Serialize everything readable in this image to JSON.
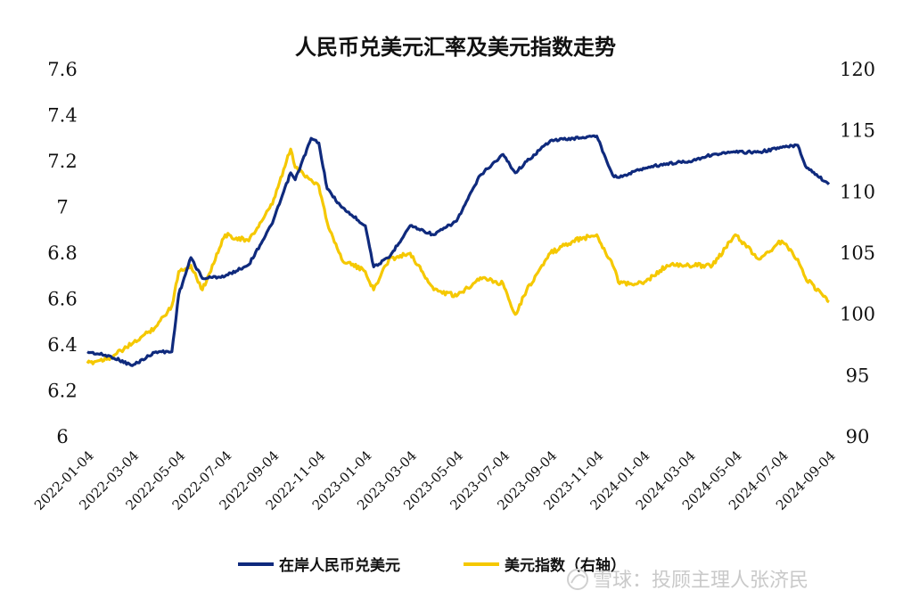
{
  "chart_data": {
    "type": "line",
    "title": "人民币兑美元汇率及美元指数走势",
    "xlabel": "",
    "ylabel": "",
    "x_ticks": [
      "2022-01-04",
      "2022-03-04",
      "2022-05-04",
      "2022-07-04",
      "2022-09-04",
      "2022-11-04",
      "2023-01-04",
      "2023-03-04",
      "2023-05-04",
      "2023-07-04",
      "2023-09-04",
      "2023-11-04",
      "2024-01-04",
      "2024-03-04",
      "2024-05-04",
      "2024-07-04",
      "2024-09-04"
    ],
    "y_left": {
      "min": 6,
      "max": 7.6,
      "ticks": [
        "7.6",
        "7.4",
        "7.2",
        "7",
        "6.8",
        "6.6",
        "6.4",
        "6.2",
        "6"
      ],
      "tick_values": [
        7.6,
        7.4,
        7.2,
        7.0,
        6.8,
        6.6,
        6.4,
        6.2,
        6.0
      ]
    },
    "y_right": {
      "min": 90,
      "max": 120,
      "ticks": [
        "120",
        "115",
        "110",
        "105",
        "100",
        "95",
        "90"
      ],
      "tick_values": [
        120,
        115,
        110,
        105,
        100,
        95,
        90
      ]
    },
    "x": [
      "2022-01-04",
      "2022-02-04",
      "2022-03-04",
      "2022-04-04",
      "2022-04-25",
      "2022-05-04",
      "2022-05-20",
      "2022-06-04",
      "2022-07-04",
      "2022-08-04",
      "2022-09-04",
      "2022-09-28",
      "2022-10-04",
      "2022-10-25",
      "2022-11-04",
      "2022-11-15",
      "2022-12-04",
      "2023-01-04",
      "2023-01-15",
      "2023-02-04",
      "2023-03-04",
      "2023-04-04",
      "2023-05-04",
      "2023-06-04",
      "2023-07-04",
      "2023-07-20",
      "2023-08-04",
      "2023-09-04",
      "2023-10-04",
      "2023-11-04",
      "2023-11-25",
      "2023-12-04",
      "2024-01-04",
      "2024-02-04",
      "2024-03-04",
      "2024-04-04",
      "2024-05-04",
      "2024-06-04",
      "2024-07-04",
      "2024-07-25",
      "2024-08-04",
      "2024-09-04"
    ],
    "series": [
      {
        "name": "在岸人民币兑美元",
        "color": "#0f2a7d",
        "axis": "left",
        "values": [
          6.37,
          6.35,
          6.31,
          6.37,
          6.37,
          6.62,
          6.78,
          6.69,
          6.7,
          6.75,
          6.93,
          7.15,
          7.12,
          7.3,
          7.28,
          7.08,
          7.0,
          6.92,
          6.74,
          6.78,
          6.92,
          6.88,
          6.94,
          7.14,
          7.23,
          7.15,
          7.2,
          7.29,
          7.3,
          7.31,
          7.14,
          7.13,
          7.17,
          7.19,
          7.2,
          7.23,
          7.24,
          7.24,
          7.26,
          7.27,
          7.18,
          7.1
        ]
      },
      {
        "name": "美元指数（右轴）",
        "color": "#f5c800",
        "axis": "right",
        "values": [
          96.0,
          96.5,
          97.6,
          99.0,
          100.7,
          103.5,
          104.0,
          102.0,
          106.5,
          106.0,
          109.0,
          113.5,
          112.0,
          111.0,
          110.5,
          107.5,
          104.5,
          103.5,
          102.0,
          104.5,
          105.0,
          102.0,
          101.5,
          103.0,
          102.5,
          100.0,
          102.0,
          105.0,
          106.0,
          106.5,
          104.0,
          102.5,
          102.5,
          104.0,
          104.0,
          104.0,
          106.5,
          104.5,
          106.0,
          104.5,
          103.0,
          101.0
        ]
      }
    ],
    "legend": {
      "position": "bottom"
    }
  },
  "watermark": {
    "text": "雪球：投顾主理人张济民"
  }
}
